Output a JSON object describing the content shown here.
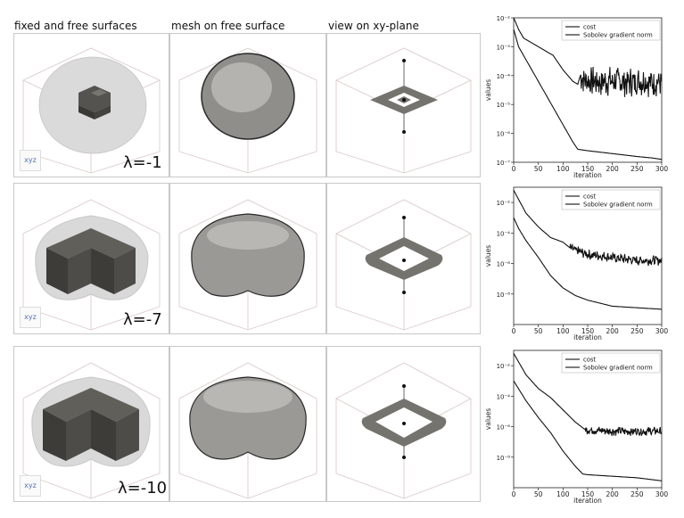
{
  "headers": {
    "col1": "fixed and free surfaces",
    "col2": "mesh on free surface",
    "col3": "view on xy-plane"
  },
  "rows": [
    {
      "lambda_label": "λ=-1"
    },
    {
      "lambda_label": "λ=-7"
    },
    {
      "lambda_label": "λ=-10"
    }
  ],
  "colors": {
    "panel_border": "#c8c8c8",
    "solid_gray": "#5b5a55",
    "halo_gray": "#d6d6d6",
    "mesh_gray": "#9a9a9a"
  },
  "chart_data": [
    {
      "type": "line",
      "xlabel": "iteration",
      "ylabel": "values",
      "xlim": [
        0,
        300
      ],
      "xticks": [
        "0",
        "50",
        "100",
        "150",
        "200",
        "250",
        "300"
      ],
      "ylim_log10": [
        -7,
        -2
      ],
      "yticks": [
        {
          "exp": -2,
          "label": "10⁻²"
        },
        {
          "exp": -3,
          "label": "10⁻³"
        },
        {
          "exp": -4,
          "label": "10⁻⁴"
        },
        {
          "exp": -5,
          "label": "10⁻⁵"
        },
        {
          "exp": -6,
          "label": "10⁻⁶"
        },
        {
          "exp": -7,
          "label": "10⁻⁷"
        }
      ],
      "legend": "top-right",
      "series": [
        {
          "name": "cost",
          "x": [
            0,
            10,
            20,
            40,
            60,
            80,
            100,
            120,
            130,
            150,
            200,
            250,
            280,
            300
          ],
          "log10y": [
            -2.4,
            -3.0,
            -3.3,
            -3.9,
            -4.5,
            -5.1,
            -5.7,
            -6.3,
            -6.55,
            -6.6,
            -6.7,
            -6.8,
            -6.85,
            -6.9
          ]
        },
        {
          "name": "Sobolev gradient norm",
          "x": [
            0,
            10,
            20,
            40,
            60,
            80,
            100,
            120,
            130,
            135,
            150,
            200,
            250,
            300
          ],
          "log10y": [
            -2.0,
            -2.4,
            -2.7,
            -2.9,
            -3.1,
            -3.3,
            -3.8,
            -4.2,
            -4.3,
            -4.0,
            -4.2,
            -4.2,
            -4.2,
            -4.2
          ],
          "noisy_from_x": 135,
          "noise_log10_amp": 0.55
        }
      ]
    },
    {
      "type": "line",
      "xlabel": "iteration",
      "ylabel": "values",
      "xlim": [
        0,
        300
      ],
      "xticks": [
        "0",
        "50",
        "100",
        "150",
        "200",
        "250",
        "300"
      ],
      "ylim_log10": [
        -10,
        -1
      ],
      "yticks": [
        {
          "exp": -2,
          "label": "10⁻²"
        },
        {
          "exp": -4,
          "label": "10⁻⁴"
        },
        {
          "exp": -6,
          "label": "10⁻⁶"
        },
        {
          "exp": -8,
          "label": "10⁻⁸"
        }
      ],
      "legend": "top-right",
      "series": [
        {
          "name": "cost",
          "x": [
            0,
            10,
            25,
            50,
            75,
            100,
            125,
            150,
            175,
            200,
            250,
            300
          ],
          "log10y": [
            -3.0,
            -3.7,
            -4.5,
            -5.6,
            -6.8,
            -7.6,
            -8.1,
            -8.4,
            -8.6,
            -8.8,
            -8.9,
            -9.0
          ]
        },
        {
          "name": "Sobolev gradient norm",
          "x": [
            0,
            25,
            50,
            75,
            100,
            115,
            130,
            150,
            200,
            250,
            300
          ],
          "log10y": [
            -1.2,
            -2.7,
            -3.6,
            -4.3,
            -4.6,
            -5.0,
            -5.2,
            -5.4,
            -5.6,
            -5.8,
            -5.8
          ],
          "noisy_from_x": 115,
          "noise_log10_amp": 0.35
        }
      ]
    },
    {
      "type": "line",
      "xlabel": "iteration",
      "ylabel": "values",
      "xlim": [
        0,
        300
      ],
      "xticks": [
        "0",
        "50",
        "100",
        "150",
        "200",
        "250",
        "300"
      ],
      "ylim_log10": [
        -10,
        -1
      ],
      "yticks": [
        {
          "exp": -2,
          "label": "10⁻²"
        },
        {
          "exp": -4,
          "label": "10⁻⁴"
        },
        {
          "exp": -6,
          "label": "10⁻⁶"
        },
        {
          "exp": -8,
          "label": "10⁻⁸"
        }
      ],
      "legend": "top-right",
      "series": [
        {
          "name": "cost",
          "x": [
            0,
            25,
            50,
            75,
            100,
            125,
            140,
            150,
            200,
            250,
            300
          ],
          "log10y": [
            -3.0,
            -4.3,
            -5.4,
            -6.4,
            -7.6,
            -8.6,
            -9.1,
            -9.15,
            -9.25,
            -9.35,
            -9.55
          ]
        },
        {
          "name": "Sobolev gradient norm",
          "x": [
            0,
            25,
            50,
            75,
            100,
            125,
            145,
            150,
            200,
            250,
            300
          ],
          "log10y": [
            -1.2,
            -2.6,
            -3.5,
            -4.1,
            -4.9,
            -5.7,
            -6.2,
            -6.2,
            -6.3,
            -6.3,
            -6.3
          ],
          "noisy_from_x": 145,
          "noise_log10_amp": 0.3
        }
      ]
    }
  ]
}
